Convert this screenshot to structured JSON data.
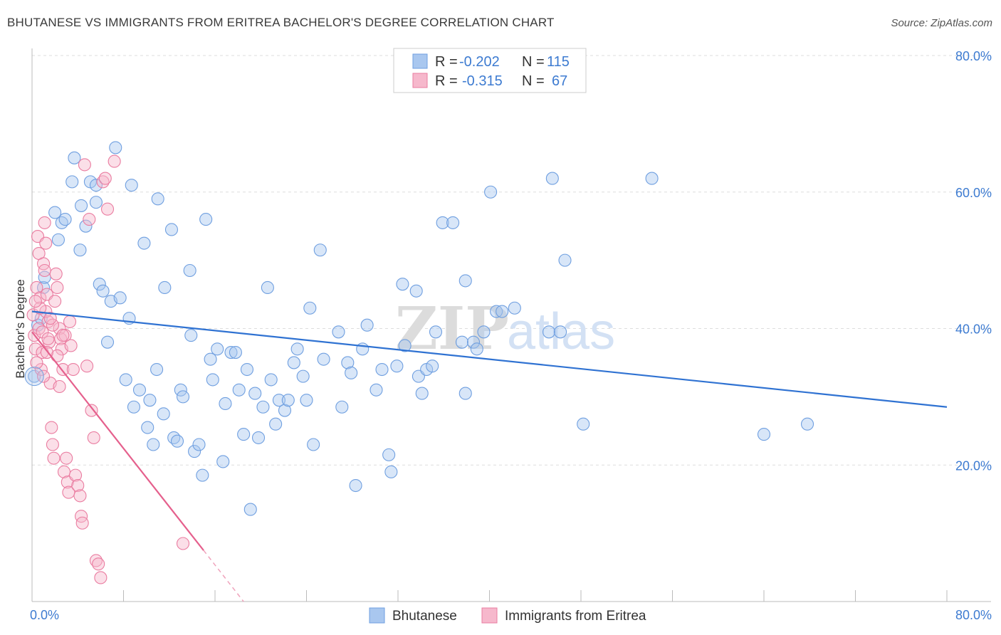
{
  "title": "BHUTANESE VS IMMIGRANTS FROM ERITREA BACHELOR'S DEGREE CORRELATION CHART",
  "source": "Source: ZipAtlas.com",
  "watermark": {
    "zip": "ZIP",
    "atlas": "atlas"
  },
  "legend": {
    "rows": [
      {
        "r_label": "R =",
        "r_value": "-0.202",
        "n_label": "N =",
        "n_value": "115",
        "color": "#a9c7ef"
      },
      {
        "r_label": "R =",
        "r_value": "-0.315",
        "n_label": "N =",
        "n_value": "67",
        "color": "#f6b8cc"
      }
    ]
  },
  "bottom_legend": [
    "Bhutanese",
    "Immigrants from Eritrea"
  ],
  "chart_data": {
    "type": "scatter",
    "title": "BHUTANESE VS IMMIGRANTS FROM ERITREA BACHELOR'S DEGREE CORRELATION CHART",
    "xlabel": "",
    "ylabel": "Bachelor's Degree",
    "xlim": [
      0,
      80
    ],
    "ylim": [
      0,
      80
    ],
    "x_tick_labels": [
      "0.0%",
      "80.0%"
    ],
    "y_tick_labels": [
      "20.0%",
      "40.0%",
      "60.0%",
      "80.0%"
    ],
    "y_ticks": [
      20,
      40,
      60,
      80
    ],
    "grid": "horizontal dashed",
    "legend_position": "top-center",
    "series": [
      {
        "name": "Bhutanese",
        "color": "#6f9fe0",
        "fill": "#a9c7ef",
        "trend": {
          "x": [
            0,
            80
          ],
          "y": [
            42.5,
            28.5
          ]
        },
        "points": [
          [
            0.2,
            33
          ],
          [
            0.5,
            40.5
          ],
          [
            0.8,
            41.5
          ],
          [
            1,
            46
          ],
          [
            1.1,
            47.5
          ],
          [
            2,
            57
          ],
          [
            2.3,
            53
          ],
          [
            2.6,
            55.5
          ],
          [
            2.9,
            56
          ],
          [
            3.7,
            65
          ],
          [
            3.5,
            61.5
          ],
          [
            4.2,
            51.5
          ],
          [
            4.3,
            58
          ],
          [
            4.7,
            55
          ],
          [
            5.1,
            61.5
          ],
          [
            5.6,
            58.5
          ],
          [
            5.6,
            61
          ],
          [
            5.9,
            46.5
          ],
          [
            6.2,
            45.5
          ],
          [
            6.6,
            38
          ],
          [
            6.9,
            44
          ],
          [
            7.3,
            66.5
          ],
          [
            7.7,
            44.5
          ],
          [
            8.2,
            32.5
          ],
          [
            8.5,
            41.5
          ],
          [
            8.7,
            61
          ],
          [
            8.9,
            28.5
          ],
          [
            9.4,
            31
          ],
          [
            9.8,
            52.5
          ],
          [
            10.1,
            25.5
          ],
          [
            10.3,
            29.5
          ],
          [
            10.6,
            23
          ],
          [
            10.9,
            34
          ],
          [
            11,
            59
          ],
          [
            11.5,
            27.5
          ],
          [
            11.6,
            46
          ],
          [
            12.2,
            54.5
          ],
          [
            12.4,
            24
          ],
          [
            12.7,
            23.5
          ],
          [
            13,
            31
          ],
          [
            13.2,
            30
          ],
          [
            13.8,
            48.5
          ],
          [
            13.9,
            39
          ],
          [
            14.2,
            22
          ],
          [
            14.6,
            23
          ],
          [
            14.9,
            18.5
          ],
          [
            15.2,
            56
          ],
          [
            15.6,
            35.5
          ],
          [
            15.8,
            32.5
          ],
          [
            16.2,
            37
          ],
          [
            16.7,
            20.5
          ],
          [
            16.9,
            29
          ],
          [
            17.4,
            36.5
          ],
          [
            17.8,
            36.5
          ],
          [
            18.1,
            31
          ],
          [
            18.5,
            24.5
          ],
          [
            18.8,
            34
          ],
          [
            19.1,
            13.5
          ],
          [
            19.5,
            30.5
          ],
          [
            19.8,
            24
          ],
          [
            20.2,
            28.5
          ],
          [
            20.6,
            46
          ],
          [
            20.9,
            32.5
          ],
          [
            21.3,
            26
          ],
          [
            21.6,
            29.5
          ],
          [
            22.1,
            28
          ],
          [
            22.4,
            29.5
          ],
          [
            22.9,
            35
          ],
          [
            23.2,
            37
          ],
          [
            23.7,
            33
          ],
          [
            24,
            29.5
          ],
          [
            24.3,
            43
          ],
          [
            24.6,
            23
          ],
          [
            25.2,
            51.5
          ],
          [
            25.5,
            35.5
          ],
          [
            26.8,
            39.5
          ],
          [
            27.1,
            28.5
          ],
          [
            27.6,
            35
          ],
          [
            27.9,
            33.5
          ],
          [
            28.3,
            17
          ],
          [
            28.9,
            37
          ],
          [
            29.3,
            40.5
          ],
          [
            30.1,
            31
          ],
          [
            30.6,
            34
          ],
          [
            31.2,
            21.5
          ],
          [
            31.4,
            19
          ],
          [
            31.9,
            34.5
          ],
          [
            32.4,
            46.5
          ],
          [
            32.6,
            37.5
          ],
          [
            33.6,
            45.5
          ],
          [
            33.8,
            33
          ],
          [
            34.1,
            30.5
          ],
          [
            34.5,
            34
          ],
          [
            35,
            34.5
          ],
          [
            35.3,
            39.5
          ],
          [
            35.9,
            55.5
          ],
          [
            36.8,
            55.5
          ],
          [
            37.6,
            38
          ],
          [
            37.9,
            47
          ],
          [
            37.9,
            30.5
          ],
          [
            38.6,
            38
          ],
          [
            38.9,
            37
          ],
          [
            39.5,
            39.5
          ],
          [
            40.1,
            60
          ],
          [
            40.6,
            42.5
          ],
          [
            41.1,
            42.5
          ],
          [
            42.2,
            43
          ],
          [
            45.2,
            39.5
          ],
          [
            45.5,
            62
          ],
          [
            46.2,
            39.5
          ],
          [
            46.6,
            50
          ],
          [
            48.2,
            26
          ],
          [
            54.2,
            62
          ],
          [
            64,
            24.5
          ],
          [
            67.8,
            26
          ]
        ]
      },
      {
        "name": "Immigrants from Eritrea",
        "color": "#ea7ca0",
        "fill": "#f6b8cc",
        "trend": {
          "x": [
            0,
            15
          ],
          "y": [
            39.5,
            7.5
          ]
        },
        "trend_dashed": {
          "x": [
            15,
            18.5
          ],
          "y": [
            7.5,
            0
          ]
        },
        "points": [
          [
            0.1,
            42
          ],
          [
            0.2,
            39
          ],
          [
            0.3,
            37
          ],
          [
            0.4,
            46
          ],
          [
            0.5,
            53.5
          ],
          [
            0.6,
            51
          ],
          [
            0.7,
            44.5
          ],
          [
            0.8,
            34
          ],
          [
            0.9,
            36.5
          ],
          [
            1,
            49.5
          ],
          [
            1.1,
            55.5
          ],
          [
            1.2,
            52.5
          ],
          [
            1.3,
            45
          ],
          [
            1.4,
            41
          ],
          [
            1.5,
            38
          ],
          [
            1.6,
            32
          ],
          [
            1.7,
            25.5
          ],
          [
            1.8,
            23
          ],
          [
            1.9,
            21
          ],
          [
            2,
            44
          ],
          [
            2.1,
            48
          ],
          [
            2.2,
            46
          ],
          [
            2.4,
            40
          ],
          [
            2.5,
            38.5
          ],
          [
            2.6,
            37
          ],
          [
            2.7,
            34
          ],
          [
            2.8,
            19
          ],
          [
            3,
            21
          ],
          [
            3.1,
            17.5
          ],
          [
            3.2,
            16
          ],
          [
            3.4,
            37.5
          ],
          [
            3.6,
            34
          ],
          [
            3.8,
            18.5
          ],
          [
            4,
            17
          ],
          [
            4.2,
            15.5
          ],
          [
            4.3,
            12.5
          ],
          [
            4.4,
            11.5
          ],
          [
            4.6,
            64
          ],
          [
            4.8,
            34.5
          ],
          [
            5,
            56
          ],
          [
            5.2,
            28
          ],
          [
            5.4,
            24
          ],
          [
            5.6,
            6
          ],
          [
            5.8,
            5.5
          ],
          [
            6,
            3.5
          ],
          [
            6.2,
            61.5
          ],
          [
            6.4,
            62
          ],
          [
            6.6,
            57.5
          ],
          [
            7.2,
            64.5
          ],
          [
            1.2,
            42.5
          ],
          [
            0.6,
            40
          ],
          [
            0.9,
            39.5
          ],
          [
            1.4,
            38.5
          ],
          [
            2.2,
            36
          ],
          [
            2.9,
            39
          ],
          [
            3.3,
            41
          ],
          [
            1.8,
            40.5
          ],
          [
            0.4,
            35
          ],
          [
            1.0,
            33
          ],
          [
            1.6,
            41.5
          ],
          [
            2.4,
            31.5
          ],
          [
            0.7,
            43
          ],
          [
            1.3,
            36.5
          ],
          [
            2.7,
            39
          ],
          [
            13.2,
            8.5
          ],
          [
            1.1,
            48.5
          ],
          [
            0.3,
            44
          ]
        ]
      }
    ]
  }
}
